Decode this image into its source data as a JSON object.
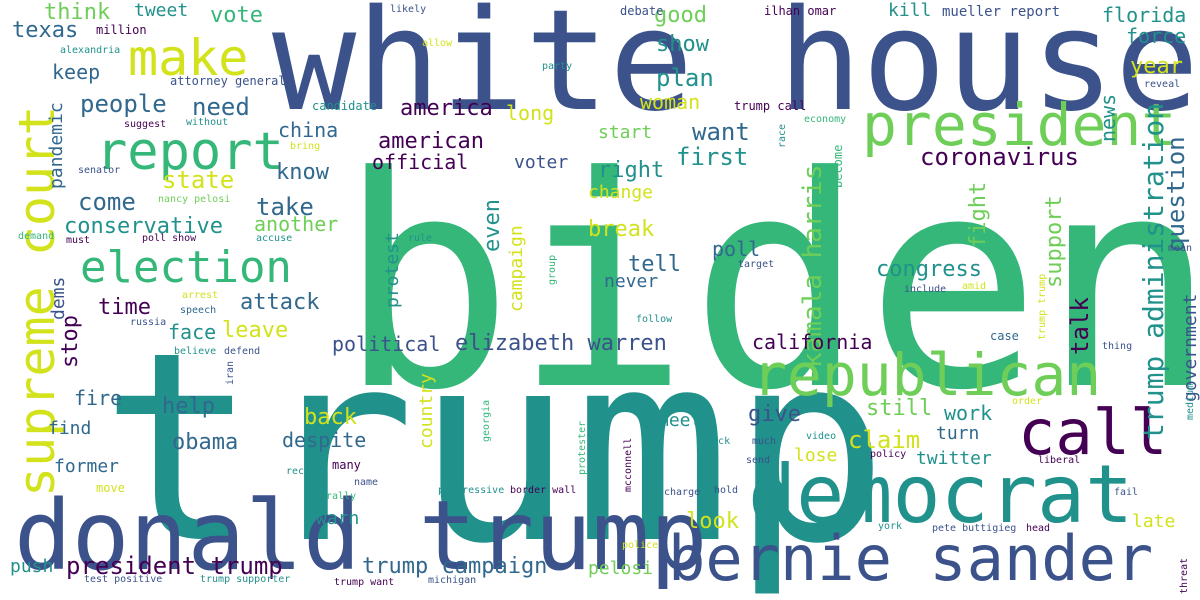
{
  "palette": {
    "purple": "#440154",
    "indigo": "#3b528b",
    "blue": "#31688e",
    "teal": "#21918c",
    "green": "#35b779",
    "lime": "#6ece58",
    "yellowgreen": "#90d743",
    "yellow": "#d2e21b"
  },
  "words": [
    {
      "text": "biden",
      "color": "green"
    },
    {
      "text": "trump",
      "color": "teal"
    },
    {
      "text": "white house",
      "color": "indigo"
    },
    {
      "text": "donald trump",
      "color": "indigo"
    },
    {
      "text": "democrat",
      "color": "teal"
    },
    {
      "text": "bernie sander",
      "color": "indigo"
    },
    {
      "text": "president",
      "color": "lime"
    },
    {
      "text": "republican",
      "color": "lime"
    },
    {
      "text": "call",
      "color": "purple"
    },
    {
      "text": "supreme court",
      "color": "yellow"
    },
    {
      "text": "report",
      "color": "green"
    },
    {
      "text": "make",
      "color": "yellow"
    },
    {
      "text": "election",
      "color": "green"
    },
    {
      "text": "trump administration",
      "color": "teal"
    },
    {
      "text": "kamala harris",
      "color": "lime"
    },
    {
      "text": "coronavirus",
      "color": "purple"
    },
    {
      "text": "elizabeth warren",
      "color": "indigo"
    },
    {
      "text": "president trump",
      "color": "purple"
    },
    {
      "text": "trump campaign",
      "color": "blue"
    },
    {
      "text": "people",
      "color": "blue"
    },
    {
      "text": "need",
      "color": "blue"
    },
    {
      "text": "state",
      "color": "yellow"
    },
    {
      "text": "come",
      "color": "blue"
    },
    {
      "text": "take",
      "color": "blue"
    },
    {
      "text": "conservative",
      "color": "teal"
    },
    {
      "text": "another",
      "color": "lime"
    },
    {
      "text": "attack",
      "color": "blue"
    },
    {
      "text": "time",
      "color": "purple"
    },
    {
      "text": "leave",
      "color": "yellow"
    },
    {
      "text": "know",
      "color": "blue"
    },
    {
      "text": "america",
      "color": "purple"
    },
    {
      "text": "american",
      "color": "purple"
    },
    {
      "text": "official",
      "color": "purple"
    },
    {
      "text": "china",
      "color": "blue"
    },
    {
      "text": "want",
      "color": "blue"
    },
    {
      "text": "first",
      "color": "teal"
    },
    {
      "text": "right",
      "color": "teal"
    },
    {
      "text": "plan",
      "color": "teal"
    },
    {
      "text": "woman",
      "color": "yellow"
    },
    {
      "text": "show",
      "color": "teal"
    },
    {
      "text": "good",
      "color": "lime"
    },
    {
      "text": "long",
      "color": "yellow"
    },
    {
      "text": "even",
      "color": "teal"
    },
    {
      "text": "campaign",
      "color": "yellow"
    },
    {
      "text": "break",
      "color": "yellow"
    },
    {
      "text": "tell",
      "color": "blue"
    },
    {
      "text": "never",
      "color": "blue"
    },
    {
      "text": "change",
      "color": "yellow"
    },
    {
      "text": "start",
      "color": "lime"
    },
    {
      "text": "voter",
      "color": "indigo"
    },
    {
      "text": "protest",
      "color": "teal"
    },
    {
      "text": "political",
      "color": "indigo"
    },
    {
      "text": "california",
      "color": "purple"
    },
    {
      "text": "congress",
      "color": "teal"
    },
    {
      "text": "poll",
      "color": "blue"
    },
    {
      "text": "fight",
      "color": "lime"
    },
    {
      "text": "support",
      "color": "lime"
    },
    {
      "text": "talk",
      "color": "purple"
    },
    {
      "text": "question",
      "color": "blue"
    },
    {
      "text": "government",
      "color": "indigo"
    },
    {
      "text": "news",
      "color": "teal"
    },
    {
      "text": "year",
      "color": "yellow"
    },
    {
      "text": "force",
      "color": "teal"
    },
    {
      "text": "florida",
      "color": "teal"
    },
    {
      "text": "texas",
      "color": "blue"
    },
    {
      "text": "think",
      "color": "lime"
    },
    {
      "text": "tweet",
      "color": "teal"
    },
    {
      "text": "vote",
      "color": "green"
    },
    {
      "text": "keep",
      "color": "blue"
    },
    {
      "text": "pandemic",
      "color": "blue"
    },
    {
      "text": "dems",
      "color": "indigo"
    },
    {
      "text": "stop",
      "color": "purple"
    },
    {
      "text": "fire",
      "color": "blue"
    },
    {
      "text": "find",
      "color": "blue"
    },
    {
      "text": "former",
      "color": "blue"
    },
    {
      "text": "help",
      "color": "blue"
    },
    {
      "text": "face",
      "color": "teal"
    },
    {
      "text": "obama",
      "color": "blue"
    },
    {
      "text": "despite",
      "color": "blue"
    },
    {
      "text": "back",
      "color": "yellow"
    },
    {
      "text": "country",
      "color": "yellow"
    },
    {
      "text": "warn",
      "color": "teal"
    },
    {
      "text": "meet",
      "color": "teal"
    },
    {
      "text": "look",
      "color": "yellow"
    },
    {
      "text": "pelosi",
      "color": "lime"
    },
    {
      "text": "give",
      "color": "indigo"
    },
    {
      "text": "still",
      "color": "lime"
    },
    {
      "text": "work",
      "color": "teal"
    },
    {
      "text": "claim",
      "color": "yellow"
    },
    {
      "text": "turn",
      "color": "blue"
    },
    {
      "text": "lose",
      "color": "yellow"
    },
    {
      "text": "twitter",
      "color": "teal"
    },
    {
      "text": "late",
      "color": "yellow"
    },
    {
      "text": "push",
      "color": "teal"
    },
    {
      "text": "kill",
      "color": "teal"
    },
    {
      "text": "mueller report",
      "color": "indigo"
    },
    {
      "text": "ilhan omar",
      "color": "purple"
    },
    {
      "text": "debate",
      "color": "indigo"
    },
    {
      "text": "likely",
      "color": "indigo"
    },
    {
      "text": "million",
      "color": "purple"
    },
    {
      "text": "alexandria",
      "color": "teal"
    },
    {
      "text": "attorney general",
      "color": "indigo"
    },
    {
      "text": "party",
      "color": "teal"
    },
    {
      "text": "allow",
      "color": "yellow"
    },
    {
      "text": "candidate",
      "color": "teal"
    },
    {
      "text": "trump call",
      "color": "purple"
    },
    {
      "text": "economy",
      "color": "green"
    },
    {
      "text": "reveal",
      "color": "indigo"
    },
    {
      "text": "suggest",
      "color": "purple"
    },
    {
      "text": "without",
      "color": "teal"
    },
    {
      "text": "bring",
      "color": "yellow"
    },
    {
      "text": "senator",
      "color": "indigo"
    },
    {
      "text": "nancy pelosi",
      "color": "lime"
    },
    {
      "text": "race",
      "color": "teal"
    },
    {
      "text": "become",
      "color": "green"
    },
    {
      "text": "demand",
      "color": "green"
    },
    {
      "text": "must",
      "color": "purple"
    },
    {
      "text": "poll show",
      "color": "purple"
    },
    {
      "text": "accuse",
      "color": "teal"
    },
    {
      "text": "rule",
      "color": "teal"
    },
    {
      "text": "group",
      "color": "green"
    },
    {
      "text": "target",
      "color": "indigo"
    },
    {
      "text": "include",
      "color": "indigo"
    },
    {
      "text": "amid",
      "color": "yellow"
    },
    {
      "text": "mean",
      "color": "indigo"
    },
    {
      "text": "arrest",
      "color": "yellow"
    },
    {
      "text": "speech",
      "color": "blue"
    },
    {
      "text": "russia",
      "color": "indigo"
    },
    {
      "text": "follow",
      "color": "teal"
    },
    {
      "text": "trump trump",
      "color": "yellow"
    },
    {
      "text": "case",
      "color": "blue"
    },
    {
      "text": "thing",
      "color": "indigo"
    },
    {
      "text": "believe",
      "color": "teal"
    },
    {
      "text": "defend",
      "color": "indigo"
    },
    {
      "text": "iran",
      "color": "indigo"
    },
    {
      "text": "order",
      "color": "yellow"
    },
    {
      "text": "medium",
      "color": "teal"
    },
    {
      "text": "video",
      "color": "teal"
    },
    {
      "text": "much",
      "color": "indigo"
    },
    {
      "text": "send",
      "color": "indigo"
    },
    {
      "text": "black",
      "color": "teal"
    },
    {
      "text": "policy",
      "color": "purple"
    },
    {
      "text": "liberal",
      "color": "purple"
    },
    {
      "text": "record",
      "color": "teal"
    },
    {
      "text": "many",
      "color": "purple"
    },
    {
      "text": "name",
      "color": "indigo"
    },
    {
      "text": "rally",
      "color": "green"
    },
    {
      "text": "move",
      "color": "yellow"
    },
    {
      "text": "georgia",
      "color": "green"
    },
    {
      "text": "protester",
      "color": "green"
    },
    {
      "text": "mcconnell",
      "color": "purple"
    },
    {
      "text": "progressive",
      "color": "teal"
    },
    {
      "text": "border wall",
      "color": "purple"
    },
    {
      "text": "charge",
      "color": "indigo"
    },
    {
      "text": "hold",
      "color": "indigo"
    },
    {
      "text": "fail",
      "color": "indigo"
    },
    {
      "text": "york",
      "color": "teal"
    },
    {
      "text": "pete buttigieg",
      "color": "indigo"
    },
    {
      "text": "head",
      "color": "purple"
    },
    {
      "text": "police",
      "color": "yellow"
    },
    {
      "text": "threat",
      "color": "purple"
    },
    {
      "text": "test positive",
      "color": "indigo"
    },
    {
      "text": "trump supporter",
      "color": "teal"
    },
    {
      "text": "trump want",
      "color": "purple"
    },
    {
      "text": "michigan",
      "color": "indigo"
    }
  ]
}
